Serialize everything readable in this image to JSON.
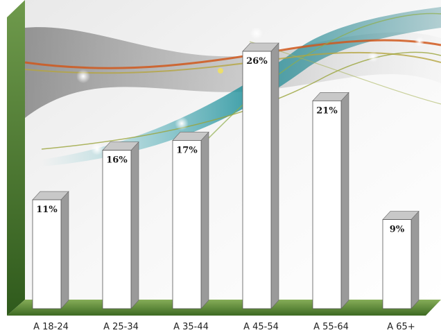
{
  "chart_data": {
    "type": "bar",
    "categories": [
      "A 18-24",
      "A 25-34",
      "A 35-44",
      "A 45-54",
      "A 55-64",
      "A 65+"
    ],
    "values": [
      11,
      16,
      17,
      26,
      21,
      9
    ],
    "data_labels": [
      "11%",
      "16%",
      "17%",
      "26%",
      "21%",
      "9%"
    ],
    "title": "",
    "xlabel": "",
    "ylabel": "",
    "ylim": [
      0,
      30
    ],
    "grid": false,
    "legend": "none"
  },
  "colors": {
    "bar_front": "#ffffff",
    "bar_side": "#9a9a9a",
    "bar_top": "#c8c8c8",
    "floor": "#5e8a3a",
    "wall_left": "#4f7d34",
    "wave_dark": "#3a3a3a",
    "wave_teal": "#1a9aa0",
    "wave_orange": "#d0581c",
    "wave_olive": "#9aa43a"
  }
}
